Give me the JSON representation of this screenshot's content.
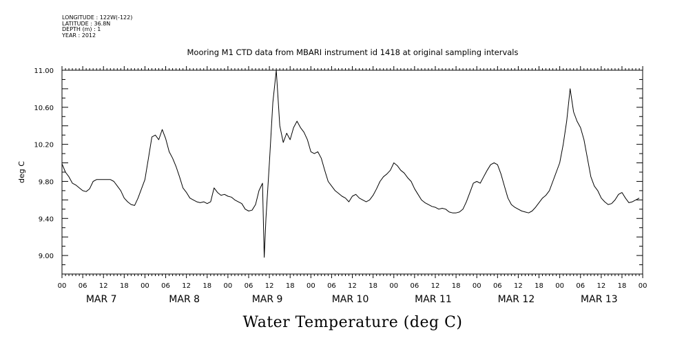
{
  "header": {
    "longitude": "LONGITUDE : 122W(-122)",
    "latitude": "LATITUDE : 36.8N",
    "depth": "DEPTH (m) : 1",
    "year": "YEAR : 2012"
  },
  "chart_data": {
    "type": "line",
    "title": "Mooring M1 CTD data from MBARI instrument id 1418 at original sampling intervals",
    "xlabel": "Water Temperature (deg C)",
    "ylabel": "deg C",
    "ylim": [
      8.8,
      11.0
    ],
    "xlim": [
      "2012-03-07T00:00",
      "2012-03-13T23:59"
    ],
    "grid": false,
    "y_ticks": [
      "9.00",
      "9.40",
      "9.80",
      "10.20",
      "10.60",
      "11.00"
    ],
    "x_hour_labels": [
      "00",
      "06",
      "12",
      "18",
      "00",
      "06",
      "12",
      "18",
      "00",
      "06",
      "12",
      "18",
      "00",
      "06",
      "12",
      "18",
      "00",
      "06",
      "12",
      "18",
      "00",
      "06",
      "12",
      "18",
      "00",
      "06",
      "12",
      "18",
      "00"
    ],
    "x_day_labels": [
      "MAR  7",
      "MAR  8",
      "MAR  9",
      "MAR 10",
      "MAR 11",
      "MAR 12",
      "MAR 13"
    ],
    "series": [
      {
        "values": [
          [
            "2012-03-07T00:00",
            9.99
          ],
          [
            "2012-03-07T01:00",
            9.9
          ],
          [
            "2012-03-07T02:00",
            9.85
          ],
          [
            "2012-03-07T03:00",
            9.78
          ],
          [
            "2012-03-07T04:00",
            9.76
          ],
          [
            "2012-03-07T05:00",
            9.73
          ],
          [
            "2012-03-07T06:00",
            9.7
          ],
          [
            "2012-03-07T07:00",
            9.69
          ],
          [
            "2012-03-07T08:00",
            9.72
          ],
          [
            "2012-03-07T09:00",
            9.8
          ],
          [
            "2012-03-07T10:00",
            9.82
          ],
          [
            "2012-03-07T12:00",
            9.82
          ],
          [
            "2012-03-07T14:00",
            9.82
          ],
          [
            "2012-03-07T15:00",
            9.8
          ],
          [
            "2012-03-07T16:00",
            9.75
          ],
          [
            "2012-03-07T17:00",
            9.7
          ],
          [
            "2012-03-07T18:00",
            9.62
          ],
          [
            "2012-03-07T19:00",
            9.58
          ],
          [
            "2012-03-07T20:00",
            9.55
          ],
          [
            "2012-03-07T21:00",
            9.54
          ],
          [
            "2012-03-07T22:00",
            9.62
          ],
          [
            "2012-03-07T23:00",
            9.72
          ],
          [
            "2012-03-08T00:00",
            9.82
          ],
          [
            "2012-03-08T01:00",
            10.05
          ],
          [
            "2012-03-08T02:00",
            10.28
          ],
          [
            "2012-03-08T03:00",
            10.3
          ],
          [
            "2012-03-08T04:00",
            10.25
          ],
          [
            "2012-03-08T05:00",
            10.36
          ],
          [
            "2012-03-08T06:00",
            10.26
          ],
          [
            "2012-03-08T07:00",
            10.12
          ],
          [
            "2012-03-08T08:00",
            10.05
          ],
          [
            "2012-03-08T09:00",
            9.96
          ],
          [
            "2012-03-08T10:00",
            9.85
          ],
          [
            "2012-03-08T11:00",
            9.73
          ],
          [
            "2012-03-08T12:00",
            9.68
          ],
          [
            "2012-03-08T13:00",
            9.62
          ],
          [
            "2012-03-08T14:00",
            9.6
          ],
          [
            "2012-03-08T15:00",
            9.58
          ],
          [
            "2012-03-08T16:00",
            9.57
          ],
          [
            "2012-03-08T17:00",
            9.58
          ],
          [
            "2012-03-08T18:00",
            9.56
          ],
          [
            "2012-03-08T19:00",
            9.58
          ],
          [
            "2012-03-08T20:00",
            9.73
          ],
          [
            "2012-03-08T21:00",
            9.68
          ],
          [
            "2012-03-08T22:00",
            9.65
          ],
          [
            "2012-03-08T23:00",
            9.66
          ],
          [
            "2012-03-09T00:00",
            9.64
          ],
          [
            "2012-03-09T01:00",
            9.63
          ],
          [
            "2012-03-09T02:00",
            9.6
          ],
          [
            "2012-03-09T03:00",
            9.58
          ],
          [
            "2012-03-09T04:00",
            9.56
          ],
          [
            "2012-03-09T05:00",
            9.5
          ],
          [
            "2012-03-09T06:00",
            9.48
          ],
          [
            "2012-03-09T07:00",
            9.49
          ],
          [
            "2012-03-09T08:00",
            9.55
          ],
          [
            "2012-03-09T09:00",
            9.7
          ],
          [
            "2012-03-09T10:00",
            9.78
          ],
          [
            "2012-03-09T10:30",
            8.98
          ],
          [
            "2012-03-09T11:00",
            9.4
          ],
          [
            "2012-03-09T12:00",
            10.0
          ],
          [
            "2012-03-09T13:00",
            10.65
          ],
          [
            "2012-03-09T14:00",
            11.0
          ],
          [
            "2012-03-09T15:00",
            10.4
          ],
          [
            "2012-03-09T16:00",
            10.22
          ],
          [
            "2012-03-09T17:00",
            10.32
          ],
          [
            "2012-03-09T18:00",
            10.25
          ],
          [
            "2012-03-09T19:00",
            10.38
          ],
          [
            "2012-03-09T20:00",
            10.45
          ],
          [
            "2012-03-09T21:00",
            10.38
          ],
          [
            "2012-03-09T22:00",
            10.33
          ],
          [
            "2012-03-09T23:00",
            10.25
          ],
          [
            "2012-03-10T00:00",
            10.12
          ],
          [
            "2012-03-10T01:00",
            10.1
          ],
          [
            "2012-03-10T02:00",
            10.12
          ],
          [
            "2012-03-10T03:00",
            10.05
          ],
          [
            "2012-03-10T04:00",
            9.92
          ],
          [
            "2012-03-10T05:00",
            9.8
          ],
          [
            "2012-03-10T06:00",
            9.75
          ],
          [
            "2012-03-10T07:00",
            9.7
          ],
          [
            "2012-03-10T08:00",
            9.67
          ],
          [
            "2012-03-10T09:00",
            9.64
          ],
          [
            "2012-03-10T10:00",
            9.62
          ],
          [
            "2012-03-10T11:00",
            9.58
          ],
          [
            "2012-03-10T12:00",
            9.64
          ],
          [
            "2012-03-10T13:00",
            9.66
          ],
          [
            "2012-03-10T14:00",
            9.62
          ],
          [
            "2012-03-10T15:00",
            9.6
          ],
          [
            "2012-03-10T16:00",
            9.58
          ],
          [
            "2012-03-10T17:00",
            9.6
          ],
          [
            "2012-03-10T18:00",
            9.65
          ],
          [
            "2012-03-10T19:00",
            9.72
          ],
          [
            "2012-03-10T20:00",
            9.8
          ],
          [
            "2012-03-10T21:00",
            9.85
          ],
          [
            "2012-03-10T22:00",
            9.88
          ],
          [
            "2012-03-10T23:00",
            9.92
          ],
          [
            "2012-03-11T00:00",
            10.0
          ],
          [
            "2012-03-11T01:00",
            9.97
          ],
          [
            "2012-03-11T02:00",
            9.92
          ],
          [
            "2012-03-11T03:00",
            9.89
          ],
          [
            "2012-03-11T04:00",
            9.84
          ],
          [
            "2012-03-11T05:00",
            9.8
          ],
          [
            "2012-03-11T06:00",
            9.72
          ],
          [
            "2012-03-11T07:00",
            9.66
          ],
          [
            "2012-03-11T08:00",
            9.6
          ],
          [
            "2012-03-11T09:00",
            9.57
          ],
          [
            "2012-03-11T10:00",
            9.55
          ],
          [
            "2012-03-11T11:00",
            9.53
          ],
          [
            "2012-03-11T12:00",
            9.52
          ],
          [
            "2012-03-11T13:00",
            9.5
          ],
          [
            "2012-03-11T14:00",
            9.51
          ],
          [
            "2012-03-11T15:00",
            9.5
          ],
          [
            "2012-03-11T16:00",
            9.47
          ],
          [
            "2012-03-11T17:00",
            9.46
          ],
          [
            "2012-03-11T18:00",
            9.46
          ],
          [
            "2012-03-11T19:00",
            9.47
          ],
          [
            "2012-03-11T20:00",
            9.5
          ],
          [
            "2012-03-11T21:00",
            9.58
          ],
          [
            "2012-03-11T22:00",
            9.68
          ],
          [
            "2012-03-11T23:00",
            9.78
          ],
          [
            "2012-03-12T00:00",
            9.8
          ],
          [
            "2012-03-12T01:00",
            9.78
          ],
          [
            "2012-03-12T02:00",
            9.85
          ],
          [
            "2012-03-12T03:00",
            9.92
          ],
          [
            "2012-03-12T04:00",
            9.98
          ],
          [
            "2012-03-12T05:00",
            10.0
          ],
          [
            "2012-03-12T06:00",
            9.98
          ],
          [
            "2012-03-12T07:00",
            9.88
          ],
          [
            "2012-03-12T08:00",
            9.75
          ],
          [
            "2012-03-12T09:00",
            9.62
          ],
          [
            "2012-03-12T10:00",
            9.55
          ],
          [
            "2012-03-12T11:00",
            9.52
          ],
          [
            "2012-03-12T12:00",
            9.5
          ],
          [
            "2012-03-12T13:00",
            9.48
          ],
          [
            "2012-03-12T14:00",
            9.47
          ],
          [
            "2012-03-12T15:00",
            9.46
          ],
          [
            "2012-03-12T16:00",
            9.48
          ],
          [
            "2012-03-12T17:00",
            9.52
          ],
          [
            "2012-03-12T18:00",
            9.57
          ],
          [
            "2012-03-12T19:00",
            9.62
          ],
          [
            "2012-03-12T20:00",
            9.65
          ],
          [
            "2012-03-12T21:00",
            9.7
          ],
          [
            "2012-03-12T22:00",
            9.8
          ],
          [
            "2012-03-12T23:00",
            9.9
          ],
          [
            "2012-03-13T00:00",
            10.0
          ],
          [
            "2012-03-13T01:00",
            10.2
          ],
          [
            "2012-03-13T02:00",
            10.45
          ],
          [
            "2012-03-13T03:00",
            10.8
          ],
          [
            "2012-03-13T04:00",
            10.55
          ],
          [
            "2012-03-13T05:00",
            10.45
          ],
          [
            "2012-03-13T06:00",
            10.38
          ],
          [
            "2012-03-13T07:00",
            10.25
          ],
          [
            "2012-03-13T08:00",
            10.05
          ],
          [
            "2012-03-13T09:00",
            9.85
          ],
          [
            "2012-03-13T10:00",
            9.75
          ],
          [
            "2012-03-13T11:00",
            9.7
          ],
          [
            "2012-03-13T12:00",
            9.62
          ],
          [
            "2012-03-13T13:00",
            9.58
          ],
          [
            "2012-03-13T14:00",
            9.55
          ],
          [
            "2012-03-13T15:00",
            9.56
          ],
          [
            "2012-03-13T16:00",
            9.6
          ],
          [
            "2012-03-13T17:00",
            9.66
          ],
          [
            "2012-03-13T18:00",
            9.68
          ],
          [
            "2012-03-13T19:00",
            9.62
          ],
          [
            "2012-03-13T20:00",
            9.57
          ],
          [
            "2012-03-13T21:00",
            9.58
          ],
          [
            "2012-03-13T22:00",
            9.6
          ],
          [
            "2012-03-13T23:00",
            9.62
          ]
        ]
      }
    ]
  }
}
